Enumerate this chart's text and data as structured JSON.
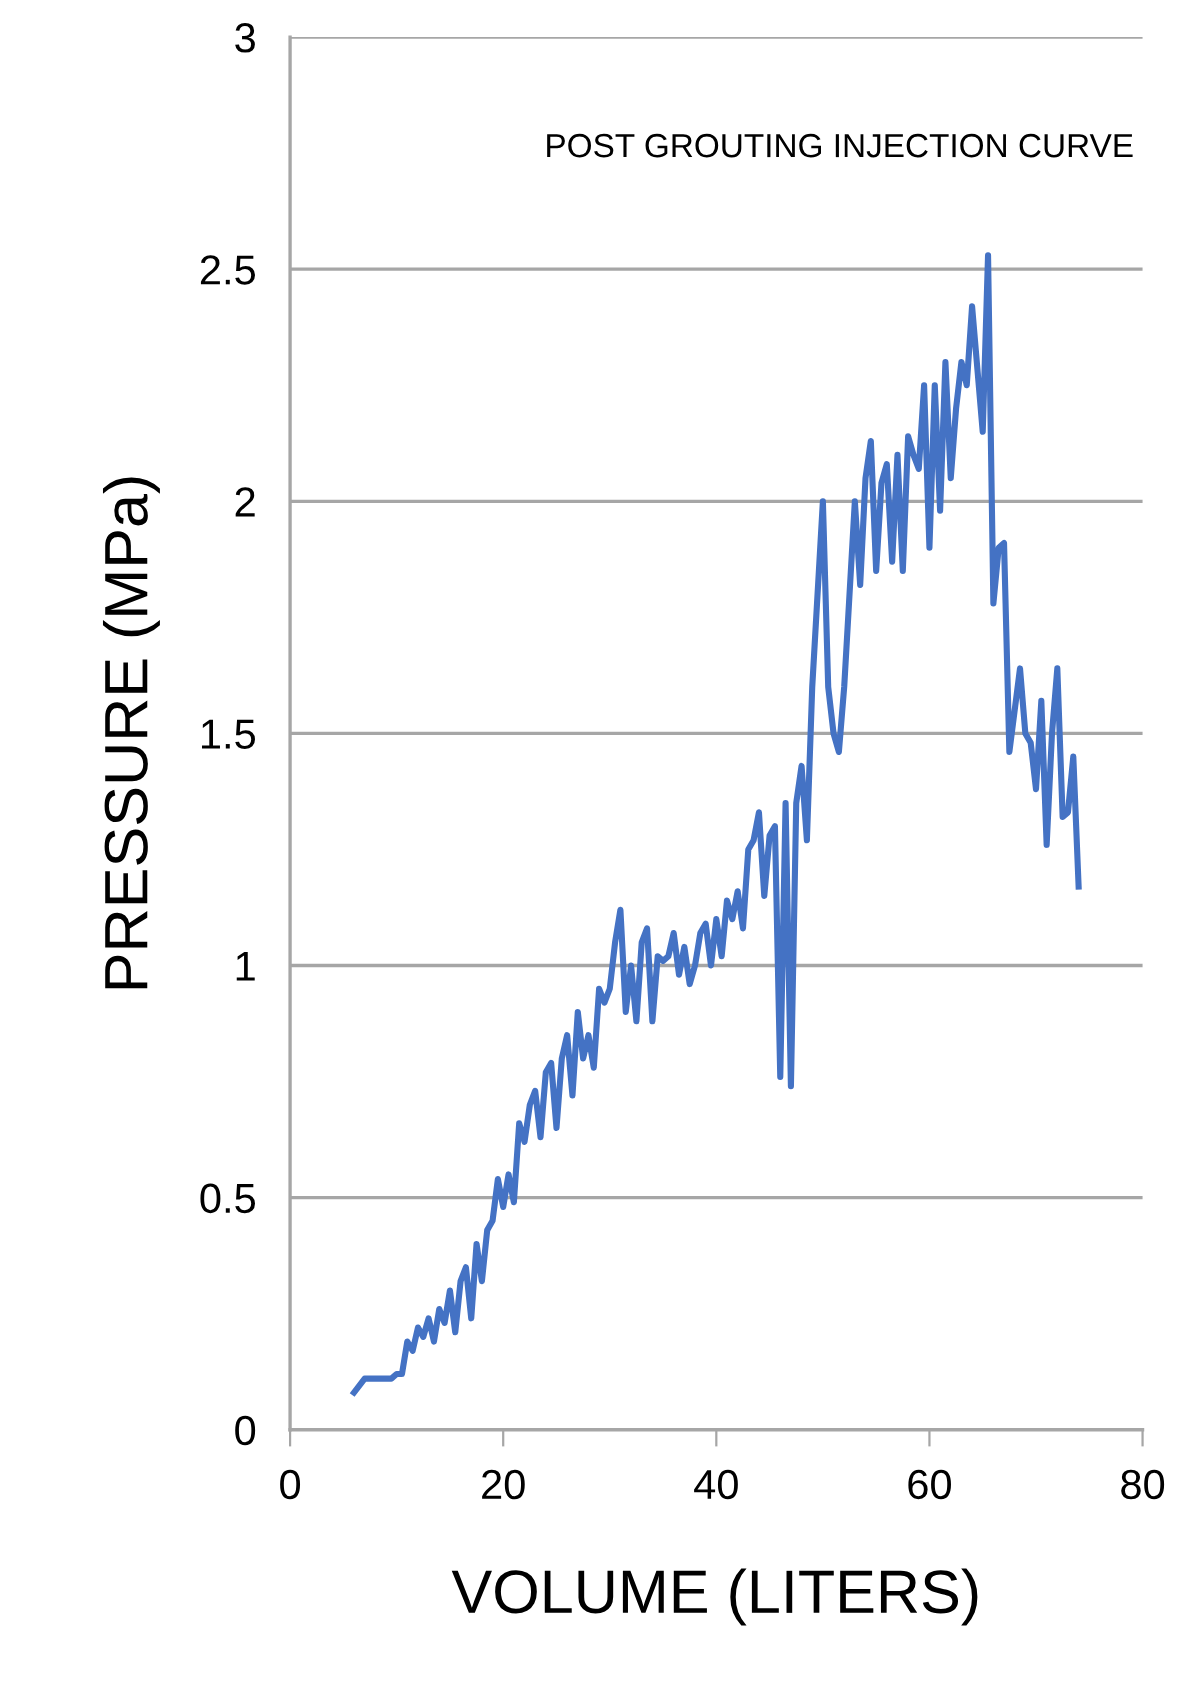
{
  "chart_data": {
    "type": "line",
    "title": "POST GROUTING INJECTION CURVE",
    "xlabel": "VOLUME (LITERS)",
    "ylabel": "PRESSURE (MPa)",
    "xlim": [
      0,
      80
    ],
    "xticks": [
      0,
      20,
      40,
      60,
      80
    ],
    "ylim": [
      0,
      3
    ],
    "yticks": [
      0,
      0.5,
      1,
      1.5,
      2,
      2.5,
      3
    ],
    "grid": "y",
    "marker": "none",
    "line_style": "solid",
    "series": [
      {
        "color": "#4472c4",
        "x": [
          6,
          7,
          9.5,
          10,
          10.5,
          11,
          11.5,
          12,
          12.5,
          13,
          13.5,
          14,
          14.5,
          15,
          15.5,
          16,
          16.5,
          17,
          17.5,
          18,
          18.5,
          19,
          19.5,
          20,
          20.5,
          21,
          21.5,
          22,
          22.5,
          23,
          23.5,
          24,
          24.5,
          25,
          25.5,
          26,
          26.5,
          27,
          27.5,
          28,
          28.5,
          29,
          29.5,
          30,
          30.5,
          31,
          31.5,
          32,
          32.5,
          33,
          33.5,
          34,
          34.5,
          35,
          35.5,
          36,
          36.5,
          37,
          37.5,
          38,
          38.5,
          39,
          39.5,
          40,
          40.5,
          41,
          41.5,
          42,
          42.5,
          43,
          43.5,
          44,
          44.5,
          45,
          45.5,
          46,
          46.5,
          47,
          47.5,
          48,
          48.5,
          49,
          50,
          50.5,
          51,
          51.5,
          52,
          53,
          53.5,
          54,
          54.5,
          55,
          55.5,
          56,
          56.5,
          57,
          57.5,
          58,
          58.5,
          59,
          59.5,
          60,
          60.5,
          61,
          61.5,
          62,
          62.5,
          63,
          63.5,
          64,
          65,
          65.5,
          66,
          66.5,
          67,
          67.5,
          68,
          68.5,
          69,
          69.5,
          70,
          70.5,
          71,
          71.5,
          72,
          72.5,
          73,
          73.5,
          74
        ],
        "values": [
          0.08,
          0.11,
          0.11,
          0.12,
          0.12,
          0.19,
          0.17,
          0.22,
          0.2,
          0.24,
          0.19,
          0.26,
          0.23,
          0.3,
          0.21,
          0.32,
          0.35,
          0.24,
          0.4,
          0.32,
          0.43,
          0.45,
          0.54,
          0.48,
          0.55,
          0.49,
          0.66,
          0.62,
          0.7,
          0.73,
          0.63,
          0.77,
          0.79,
          0.65,
          0.8,
          0.85,
          0.72,
          0.9,
          0.8,
          0.85,
          0.78,
          0.95,
          0.92,
          0.95,
          1.05,
          1.12,
          0.9,
          1.0,
          0.88,
          1.05,
          1.08,
          0.88,
          1.02,
          1.01,
          1.02,
          1.07,
          0.98,
          1.04,
          0.96,
          1.0,
          1.07,
          1.09,
          1.0,
          1.1,
          1.02,
          1.14,
          1.1,
          1.16,
          1.08,
          1.25,
          1.27,
          1.33,
          1.15,
          1.28,
          1.3,
          0.76,
          1.35,
          0.74,
          1.35,
          1.43,
          1.27,
          1.6,
          2.0,
          1.6,
          1.5,
          1.46,
          1.6,
          2.0,
          1.82,
          2.05,
          2.13,
          1.85,
          2.04,
          2.08,
          1.87,
          2.1,
          1.85,
          2.14,
          2.1,
          2.07,
          2.25,
          1.9,
          2.25,
          1.98,
          2.3,
          2.05,
          2.2,
          2.3,
          2.25,
          2.42,
          2.15,
          2.53,
          1.78,
          1.9,
          1.91,
          1.46,
          1.55,
          1.64,
          1.5,
          1.48,
          1.38,
          1.57,
          1.26,
          1.5,
          1.64,
          1.32,
          1.33,
          1.45,
          1.17
        ]
      }
    ]
  }
}
